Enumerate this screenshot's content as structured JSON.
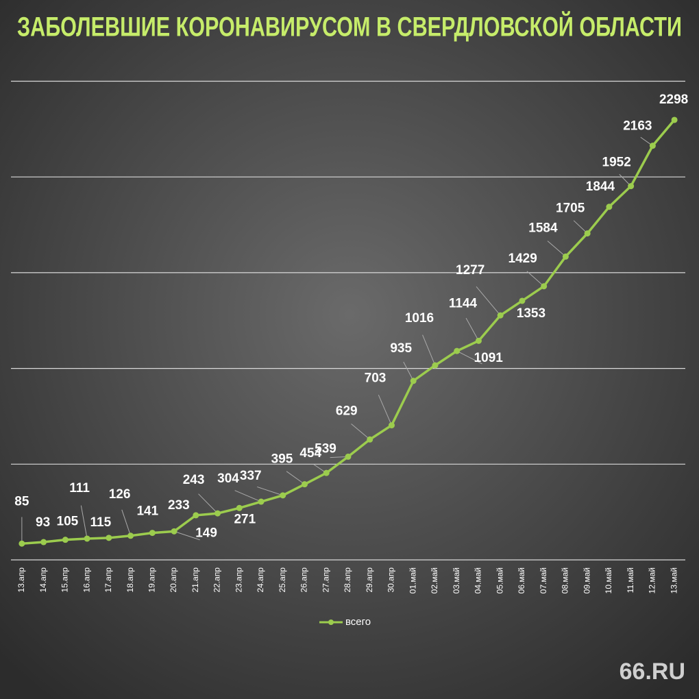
{
  "chart_data": {
    "type": "line",
    "title": "ЗАБОЛЕВШИЕ КОРОНАВИРУСОМ В СВЕРДЛОВСКОЙ ОБЛАСТИ",
    "categories": [
      "13.апр",
      "14.апр",
      "15.апр",
      "16.апр",
      "17.апр",
      "18.апр",
      "19.апр",
      "20.апр",
      "21.апр",
      "22.апр",
      "23.апр",
      "24.апр",
      "25.апр",
      "26.апр",
      "27.апр",
      "28.апр",
      "29.апр",
      "30.апр",
      "01.май",
      "02.май",
      "03.май",
      "04.май",
      "05.май",
      "06.май",
      "07.май",
      "08.май",
      "09.май",
      "10.май",
      "11.май",
      "12.май",
      "13.май"
    ],
    "series": [
      {
        "name": "всего",
        "color": "#9ccc4e",
        "values": [
          85,
          93,
          105,
          111,
          115,
          126,
          141,
          149,
          233,
          243,
          271,
          304,
          337,
          395,
          454,
          539,
          629,
          703,
          935,
          1016,
          1091,
          1144,
          1277,
          1353,
          1429,
          1584,
          1705,
          1844,
          1952,
          2163,
          2298
        ]
      }
    ],
    "ylim": [
      0,
      2500
    ],
    "yticks": [
      0,
      500,
      1000,
      1500,
      2000,
      2500
    ],
    "grid": true,
    "legend": "bottom",
    "logo": "66.RU"
  }
}
